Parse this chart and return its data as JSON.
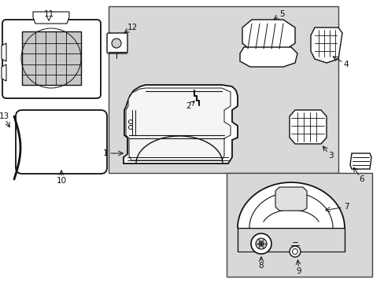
{
  "background_color": "#ffffff",
  "box_fill": "#d8d8d8",
  "box_border": "#444444",
  "line_color": "#111111",
  "figsize": [
    4.89,
    3.6
  ],
  "dpi": 100
}
